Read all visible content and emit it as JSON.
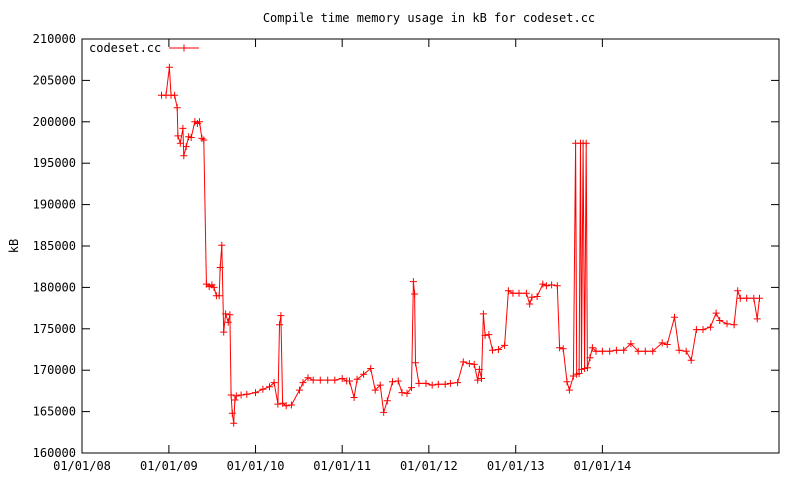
{
  "chart_data": {
    "type": "line",
    "title": "Compile time memory usage in kB for codeset.cc",
    "xlabel": "",
    "ylabel": "kB",
    "x_tick_labels": [
      "01/01/08",
      "01/01/09",
      "01/01/10",
      "01/01/11",
      "01/01/12",
      "01/01/13",
      "01/01/14"
    ],
    "x_tick_dates": [
      "2008-01-01",
      "2009-01-01",
      "2010-01-01",
      "2011-01-01",
      "2012-01-01",
      "2013-01-01",
      "2014-01-01"
    ],
    "xlim": [
      "2008-01-01",
      "2016-01-15"
    ],
    "ylim": [
      160000,
      210000
    ],
    "y_ticks": [
      160000,
      165000,
      170000,
      175000,
      180000,
      185000,
      190000,
      195000,
      200000,
      205000,
      210000
    ],
    "grid": false,
    "legend_position": "top-left",
    "series": [
      {
        "name": "codeset.cc",
        "color": "#ff0000",
        "marker": "plus",
        "points": [
          [
            "2008-12-01",
            203200
          ],
          [
            "2008-12-20",
            203200
          ],
          [
            "2009-01-03",
            206600
          ],
          [
            "2009-01-10",
            203200
          ],
          [
            "2009-01-25",
            203200
          ],
          [
            "2009-02-05",
            201700
          ],
          [
            "2009-02-08",
            198300
          ],
          [
            "2009-02-18",
            197400
          ],
          [
            "2009-03-01",
            199200
          ],
          [
            "2009-03-05",
            195900
          ],
          [
            "2009-03-15",
            197000
          ],
          [
            "2009-03-25",
            198200
          ],
          [
            "2009-04-05",
            198100
          ],
          [
            "2009-04-20",
            200000
          ],
          [
            "2009-05-01",
            199800
          ],
          [
            "2009-05-10",
            200000
          ],
          [
            "2009-05-20",
            198000
          ],
          [
            "2009-05-28",
            197800
          ],
          [
            "2009-06-08",
            180400
          ],
          [
            "2009-06-20",
            180100
          ],
          [
            "2009-07-01",
            180300
          ],
          [
            "2009-07-10",
            180000
          ],
          [
            "2009-07-20",
            179000
          ],
          [
            "2009-08-01",
            179000
          ],
          [
            "2009-08-05",
            182400
          ],
          [
            "2009-08-12",
            185100
          ],
          [
            "2009-08-20",
            174600
          ],
          [
            "2009-08-28",
            176800
          ],
          [
            "2009-09-08",
            175800
          ],
          [
            "2009-09-15",
            176700
          ],
          [
            "2009-09-20",
            167000
          ],
          [
            "2009-09-25",
            164800
          ],
          [
            "2009-10-01",
            163600
          ],
          [
            "2009-10-06",
            166400
          ],
          [
            "2009-10-12",
            166900
          ],
          [
            "2009-11-01",
            167000
          ],
          [
            "2009-11-25",
            167100
          ],
          [
            "2010-01-01",
            167300
          ],
          [
            "2010-02-01",
            167700
          ],
          [
            "2010-03-01",
            168000
          ],
          [
            "2010-03-20",
            168500
          ],
          [
            "2010-04-05",
            165900
          ],
          [
            "2010-04-12",
            175500
          ],
          [
            "2010-04-18",
            176600
          ],
          [
            "2010-04-25",
            166000
          ],
          [
            "2010-05-10",
            165700
          ],
          [
            "2010-06-01",
            165800
          ],
          [
            "2010-07-05",
            167600
          ],
          [
            "2010-07-20",
            168500
          ],
          [
            "2010-08-10",
            169100
          ],
          [
            "2010-09-01",
            168800
          ],
          [
            "2010-10-01",
            168800
          ],
          [
            "2010-11-01",
            168800
          ],
          [
            "2010-12-01",
            168800
          ],
          [
            "2011-01-01",
            169000
          ],
          [
            "2011-01-20",
            168700
          ],
          [
            "2011-02-01",
            168700
          ],
          [
            "2011-02-20",
            166700
          ],
          [
            "2011-03-05",
            168900
          ],
          [
            "2011-04-01",
            169500
          ],
          [
            "2011-05-01",
            170200
          ],
          [
            "2011-05-20",
            167600
          ],
          [
            "2011-06-10",
            168200
          ],
          [
            "2011-06-25",
            164900
          ],
          [
            "2011-07-10",
            166300
          ],
          [
            "2011-08-01",
            168600
          ],
          [
            "2011-08-25",
            168700
          ],
          [
            "2011-09-10",
            167300
          ],
          [
            "2011-10-01",
            167200
          ],
          [
            "2011-10-20",
            167900
          ],
          [
            "2011-10-28",
            180700
          ],
          [
            "2011-11-02",
            179200
          ],
          [
            "2011-11-06",
            170900
          ],
          [
            "2011-11-20",
            168400
          ],
          [
            "2011-12-20",
            168400
          ],
          [
            "2012-01-15",
            168200
          ],
          [
            "2012-02-10",
            168300
          ],
          [
            "2012-03-10",
            168300
          ],
          [
            "2012-04-01",
            168400
          ],
          [
            "2012-05-01",
            168500
          ],
          [
            "2012-05-25",
            171000
          ],
          [
            "2012-06-20",
            170800
          ],
          [
            "2012-07-10",
            170700
          ],
          [
            "2012-07-25",
            168800
          ],
          [
            "2012-08-01",
            170100
          ],
          [
            "2012-08-10",
            169000
          ],
          [
            "2012-08-18",
            176800
          ],
          [
            "2012-08-25",
            174200
          ],
          [
            "2012-09-10",
            174300
          ],
          [
            "2012-09-25",
            172400
          ],
          [
            "2012-10-20",
            172500
          ],
          [
            "2012-11-15",
            173000
          ],
          [
            "2012-12-01",
            179600
          ],
          [
            "2012-12-20",
            179300
          ],
          [
            "2013-01-15",
            179300
          ],
          [
            "2013-02-15",
            179300
          ],
          [
            "2013-03-01",
            178000
          ],
          [
            "2013-03-10",
            178800
          ],
          [
            "2013-04-01",
            178900
          ],
          [
            "2013-04-25",
            180400
          ],
          [
            "2013-05-10",
            180200
          ],
          [
            "2013-06-01",
            180300
          ],
          [
            "2013-06-25",
            180200
          ],
          [
            "2013-07-05",
            172700
          ],
          [
            "2013-07-20",
            172600
          ],
          [
            "2013-08-05",
            168600
          ],
          [
            "2013-08-15",
            167600
          ],
          [
            "2013-09-01",
            169300
          ],
          [
            "2013-09-10",
            197400
          ],
          [
            "2013-09-15",
            169500
          ],
          [
            "2013-09-25",
            169600
          ],
          [
            "2013-10-01",
            197400
          ],
          [
            "2013-10-05",
            170100
          ],
          [
            "2013-10-12",
            197400
          ],
          [
            "2013-10-18",
            170200
          ],
          [
            "2013-10-25",
            197400
          ],
          [
            "2013-10-30",
            170300
          ],
          [
            "2013-11-10",
            171500
          ],
          [
            "2013-11-20",
            172700
          ],
          [
            "2013-12-05",
            172300
          ],
          [
            "2014-01-01",
            172300
          ],
          [
            "2014-02-01",
            172300
          ],
          [
            "2014-03-01",
            172400
          ],
          [
            "2014-04-01",
            172400
          ],
          [
            "2014-05-01",
            173200
          ],
          [
            "2014-06-01",
            172300
          ],
          [
            "2014-07-01",
            172300
          ],
          [
            "2014-08-01",
            172300
          ],
          [
            "2014-09-10",
            173300
          ],
          [
            "2014-10-01",
            173100
          ],
          [
            "2014-11-01",
            176400
          ],
          [
            "2014-11-20",
            172400
          ],
          [
            "2014-12-20",
            172300
          ],
          [
            "2015-01-10",
            171200
          ],
          [
            "2015-02-01",
            174900
          ],
          [
            "2015-03-01",
            174900
          ],
          [
            "2015-04-01",
            175200
          ],
          [
            "2015-04-25",
            176900
          ],
          [
            "2015-05-10",
            176000
          ],
          [
            "2015-06-10",
            175600
          ],
          [
            "2015-07-10",
            175500
          ],
          [
            "2015-07-25",
            179600
          ],
          [
            "2015-08-05",
            178700
          ],
          [
            "2015-09-01",
            178700
          ],
          [
            "2015-10-01",
            178700
          ],
          [
            "2015-10-15",
            176200
          ],
          [
            "2015-10-25",
            178700
          ]
        ]
      }
    ]
  }
}
